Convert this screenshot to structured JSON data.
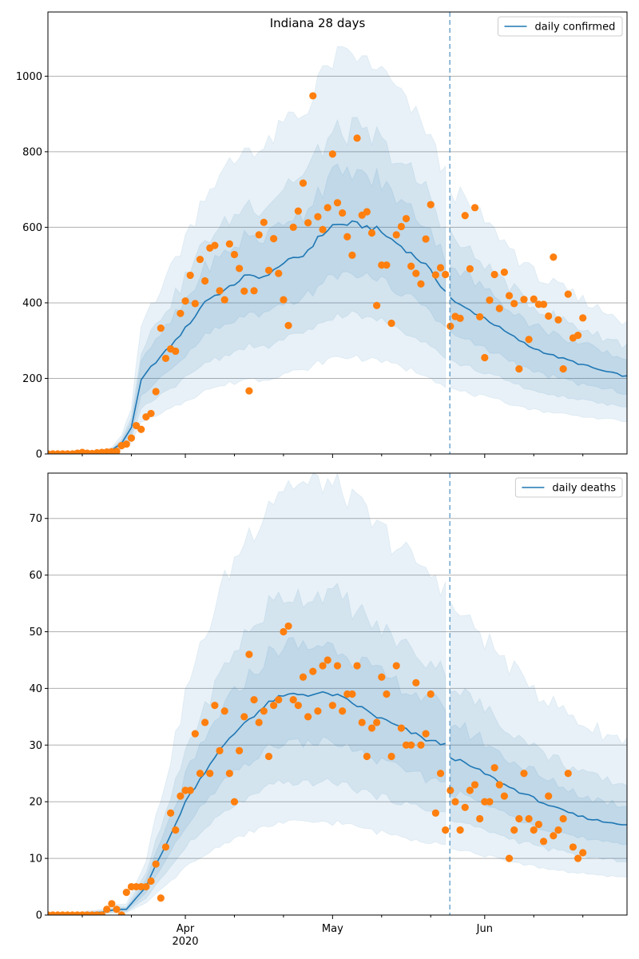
{
  "title": "Indiana 28 days",
  "x_ticks": {
    "major": [
      {
        "label": "Apr",
        "sublabel": "2020",
        "date": "2020-04-01"
      },
      {
        "label": "May",
        "sublabel": "",
        "date": "2020-05-01"
      },
      {
        "label": "Jun",
        "sublabel": "",
        "date": "2020-06-01"
      }
    ],
    "minor_dates": [
      "2020-03-11",
      "2020-03-21",
      "2020-04-11",
      "2020-04-21",
      "2020-05-11",
      "2020-05-21",
      "2020-06-11",
      "2020-06-21"
    ]
  },
  "colors": {
    "model_line": "#1f77b4",
    "observed_points": "#ff7f0e",
    "band": "#1f77b4",
    "grid": "#b0b0b0"
  },
  "chart_data": [
    {
      "type": "line",
      "name": "daily confirmed",
      "legend": {
        "label": "daily confirmed",
        "position": "upper right"
      },
      "xlim": [
        "2020-03-04",
        "2020-06-30"
      ],
      "ylim": [
        0,
        1170
      ],
      "yticks": [
        0,
        200,
        400,
        600,
        800,
        1000
      ],
      "grid": "y",
      "forecast_start": "2020-05-25",
      "model_knots": [
        [
          "2020-03-04",
          0
        ],
        [
          "2020-03-10",
          1
        ],
        [
          "2020-03-14",
          3
        ],
        [
          "2020-03-17",
          10
        ],
        [
          "2020-03-19",
          28
        ],
        [
          "2020-03-21",
          70
        ],
        [
          "2020-03-23",
          195
        ],
        [
          "2020-03-25",
          230
        ],
        [
          "2020-03-30",
          300
        ],
        [
          "2020-04-03",
          365
        ],
        [
          "2020-04-05",
          405
        ],
        [
          "2020-04-10",
          440
        ],
        [
          "2020-04-13",
          470
        ],
        [
          "2020-04-18",
          470
        ],
        [
          "2020-04-20",
          500
        ],
        [
          "2020-04-25",
          525
        ],
        [
          "2020-04-28",
          570
        ],
        [
          "2020-05-01",
          605
        ],
        [
          "2020-05-05",
          610
        ],
        [
          "2020-05-10",
          595
        ],
        [
          "2020-05-15",
          550
        ],
        [
          "2020-05-20",
          500
        ],
        [
          "2020-05-24",
          430
        ],
        [
          "2020-05-26",
          400
        ],
        [
          "2020-06-01",
          360
        ],
        [
          "2020-06-05",
          325
        ],
        [
          "2020-06-10",
          285
        ],
        [
          "2020-06-15",
          260
        ],
        [
          "2020-06-20",
          240
        ],
        [
          "2020-06-25",
          220
        ],
        [
          "2020-06-30",
          205
        ]
      ],
      "band_multipliers": {
        "inner": [
          0.78,
          1.22
        ],
        "middle": [
          0.6,
          1.4
        ],
        "outer": [
          0.42,
          1.72
        ],
        "outer_max": 1170
      },
      "observed": [
        [
          "2020-03-04",
          0
        ],
        [
          "2020-03-05",
          0
        ],
        [
          "2020-03-06",
          0
        ],
        [
          "2020-03-07",
          0
        ],
        [
          "2020-03-08",
          0
        ],
        [
          "2020-03-09",
          0
        ],
        [
          "2020-03-10",
          2
        ],
        [
          "2020-03-11",
          4
        ],
        [
          "2020-03-12",
          2
        ],
        [
          "2020-03-13",
          1
        ],
        [
          "2020-03-14",
          3
        ],
        [
          "2020-03-15",
          4
        ],
        [
          "2020-03-16",
          5
        ],
        [
          "2020-03-17",
          6
        ],
        [
          "2020-03-18",
          7
        ],
        [
          "2020-03-19",
          22
        ],
        [
          "2020-03-20",
          26
        ],
        [
          "2020-03-21",
          42
        ],
        [
          "2020-03-22",
          75
        ],
        [
          "2020-03-23",
          65
        ],
        [
          "2020-03-24",
          98
        ],
        [
          "2020-03-25",
          107
        ],
        [
          "2020-03-26",
          165
        ],
        [
          "2020-03-27",
          333
        ],
        [
          "2020-03-28",
          253
        ],
        [
          "2020-03-29",
          278
        ],
        [
          "2020-03-30",
          272
        ],
        [
          "2020-03-31",
          372
        ],
        [
          "2020-04-01",
          405
        ],
        [
          "2020-04-02",
          473
        ],
        [
          "2020-04-03",
          398
        ],
        [
          "2020-04-04",
          515
        ],
        [
          "2020-04-05",
          458
        ],
        [
          "2020-04-06",
          545
        ],
        [
          "2020-04-07",
          552
        ],
        [
          "2020-04-08",
          432
        ],
        [
          "2020-04-09",
          408
        ],
        [
          "2020-04-10",
          556
        ],
        [
          "2020-04-11",
          528
        ],
        [
          "2020-04-12",
          491
        ],
        [
          "2020-04-13",
          431
        ],
        [
          "2020-04-14",
          167
        ],
        [
          "2020-04-15",
          432
        ],
        [
          "2020-04-16",
          580
        ],
        [
          "2020-04-17",
          613
        ],
        [
          "2020-04-18",
          486
        ],
        [
          "2020-04-19",
          570
        ],
        [
          "2020-04-20",
          478
        ],
        [
          "2020-04-21",
          408
        ],
        [
          "2020-04-22",
          340
        ],
        [
          "2020-04-23",
          600
        ],
        [
          "2020-04-24",
          643
        ],
        [
          "2020-04-25",
          717
        ],
        [
          "2020-04-26",
          612
        ],
        [
          "2020-04-27",
          948
        ],
        [
          "2020-04-28",
          628
        ],
        [
          "2020-04-29",
          594
        ],
        [
          "2020-04-30",
          652
        ],
        [
          "2020-05-01",
          794
        ],
        [
          "2020-05-02",
          665
        ],
        [
          "2020-05-03",
          638
        ],
        [
          "2020-05-04",
          575
        ],
        [
          "2020-05-05",
          526
        ],
        [
          "2020-05-06",
          836
        ],
        [
          "2020-05-07",
          632
        ],
        [
          "2020-05-08",
          641
        ],
        [
          "2020-05-09",
          585
        ],
        [
          "2020-05-10",
          393
        ],
        [
          "2020-05-11",
          500
        ],
        [
          "2020-05-12",
          500
        ],
        [
          "2020-05-13",
          346
        ],
        [
          "2020-05-14",
          580
        ],
        [
          "2020-05-15",
          602
        ],
        [
          "2020-05-16",
          623
        ],
        [
          "2020-05-17",
          497
        ],
        [
          "2020-05-18",
          478
        ],
        [
          "2020-05-19",
          450
        ],
        [
          "2020-05-20",
          569
        ],
        [
          "2020-05-21",
          660
        ],
        [
          "2020-05-22",
          474
        ],
        [
          "2020-05-23",
          493
        ],
        [
          "2020-05-24",
          475
        ],
        [
          "2020-05-25",
          338
        ],
        [
          "2020-05-26",
          364
        ],
        [
          "2020-05-27",
          359
        ],
        [
          "2020-05-28",
          631
        ],
        [
          "2020-05-29",
          490
        ],
        [
          "2020-05-30",
          652
        ],
        [
          "2020-05-31",
          363
        ],
        [
          "2020-06-01",
          255
        ],
        [
          "2020-06-02",
          407
        ],
        [
          "2020-06-03",
          475
        ],
        [
          "2020-06-04",
          385
        ],
        [
          "2020-06-05",
          481
        ],
        [
          "2020-06-06",
          419
        ],
        [
          "2020-06-07",
          398
        ],
        [
          "2020-06-08",
          225
        ],
        [
          "2020-06-09",
          409
        ],
        [
          "2020-06-10",
          303
        ],
        [
          "2020-06-11",
          410
        ],
        [
          "2020-06-12",
          396
        ],
        [
          "2020-06-13",
          396
        ],
        [
          "2020-06-14",
          365
        ],
        [
          "2020-06-15",
          521
        ],
        [
          "2020-06-16",
          355
        ],
        [
          "2020-06-17",
          225
        ],
        [
          "2020-06-18",
          423
        ],
        [
          "2020-06-19",
          307
        ],
        [
          "2020-06-20",
          314
        ],
        [
          "2020-06-21",
          360
        ]
      ]
    },
    {
      "type": "line",
      "name": "daily deaths",
      "legend": {
        "label": "daily deaths",
        "position": "upper right"
      },
      "xlim": [
        "2020-03-04",
        "2020-06-30"
      ],
      "ylim": [
        0,
        78
      ],
      "yticks": [
        0,
        10,
        20,
        30,
        40,
        50,
        60,
        70
      ],
      "grid": "y",
      "forecast_start": "2020-05-25",
      "model_knots": [
        [
          "2020-03-04",
          0
        ],
        [
          "2020-03-15",
          0.5
        ],
        [
          "2020-03-18",
          1
        ],
        [
          "2020-03-20",
          1
        ],
        [
          "2020-03-24",
          5
        ],
        [
          "2020-03-26",
          9
        ],
        [
          "2020-03-29",
          14
        ],
        [
          "2020-04-01",
          20
        ],
        [
          "2020-04-04",
          24
        ],
        [
          "2020-04-07",
          28
        ],
        [
          "2020-04-10",
          31
        ],
        [
          "2020-04-13",
          34
        ],
        [
          "2020-04-16",
          36
        ],
        [
          "2020-04-19",
          38
        ],
        [
          "2020-04-23",
          39
        ],
        [
          "2020-05-01",
          39
        ],
        [
          "2020-05-06",
          37
        ],
        [
          "2020-05-10",
          35
        ],
        [
          "2020-05-15",
          33
        ],
        [
          "2020-05-20",
          31
        ],
        [
          "2020-05-24",
          30
        ],
        [
          "2020-05-25",
          28
        ],
        [
          "2020-06-01",
          25
        ],
        [
          "2020-06-05",
          23
        ],
        [
          "2020-06-10",
          21
        ],
        [
          "2020-06-15",
          19
        ],
        [
          "2020-06-20",
          17.5
        ],
        [
          "2020-06-25",
          16.5
        ],
        [
          "2020-06-30",
          16
        ]
      ],
      "band_multipliers": {
        "inner": [
          0.78,
          1.22
        ],
        "middle": [
          0.6,
          1.45
        ],
        "outer": [
          0.42,
          1.95
        ],
        "outer_max": 78
      },
      "observed": [
        [
          "2020-03-04",
          0
        ],
        [
          "2020-03-05",
          0
        ],
        [
          "2020-03-06",
          0
        ],
        [
          "2020-03-07",
          0
        ],
        [
          "2020-03-08",
          0
        ],
        [
          "2020-03-09",
          0
        ],
        [
          "2020-03-10",
          0
        ],
        [
          "2020-03-11",
          0
        ],
        [
          "2020-03-12",
          0
        ],
        [
          "2020-03-13",
          0
        ],
        [
          "2020-03-14",
          0
        ],
        [
          "2020-03-15",
          0
        ],
        [
          "2020-03-16",
          1
        ],
        [
          "2020-03-17",
          2
        ],
        [
          "2020-03-18",
          1
        ],
        [
          "2020-03-19",
          0
        ],
        [
          "2020-03-20",
          4
        ],
        [
          "2020-03-21",
          5
        ],
        [
          "2020-03-22",
          5
        ],
        [
          "2020-03-23",
          5
        ],
        [
          "2020-03-24",
          5
        ],
        [
          "2020-03-25",
          6
        ],
        [
          "2020-03-26",
          9
        ],
        [
          "2020-03-27",
          3
        ],
        [
          "2020-03-28",
          12
        ],
        [
          "2020-03-29",
          18
        ],
        [
          "2020-03-30",
          15
        ],
        [
          "2020-03-31",
          21
        ],
        [
          "2020-04-01",
          22
        ],
        [
          "2020-04-02",
          22
        ],
        [
          "2020-04-03",
          32
        ],
        [
          "2020-04-04",
          25
        ],
        [
          "2020-04-05",
          34
        ],
        [
          "2020-04-06",
          25
        ],
        [
          "2020-04-07",
          37
        ],
        [
          "2020-04-08",
          29
        ],
        [
          "2020-04-09",
          36
        ],
        [
          "2020-04-10",
          25
        ],
        [
          "2020-04-11",
          20
        ],
        [
          "2020-04-12",
          29
        ],
        [
          "2020-04-13",
          35
        ],
        [
          "2020-04-14",
          46
        ],
        [
          "2020-04-15",
          38
        ],
        [
          "2020-04-16",
          34
        ],
        [
          "2020-04-17",
          36
        ],
        [
          "2020-04-18",
          28
        ],
        [
          "2020-04-19",
          37
        ],
        [
          "2020-04-20",
          38
        ],
        [
          "2020-04-21",
          50
        ],
        [
          "2020-04-22",
          51
        ],
        [
          "2020-04-23",
          38
        ],
        [
          "2020-04-24",
          37
        ],
        [
          "2020-04-25",
          42
        ],
        [
          "2020-04-26",
          35
        ],
        [
          "2020-04-27",
          43
        ],
        [
          "2020-04-28",
          36
        ],
        [
          "2020-04-29",
          44
        ],
        [
          "2020-04-30",
          45
        ],
        [
          "2020-05-01",
          37
        ],
        [
          "2020-05-02",
          44
        ],
        [
          "2020-05-03",
          36
        ],
        [
          "2020-05-04",
          39
        ],
        [
          "2020-05-05",
          39
        ],
        [
          "2020-05-06",
          44
        ],
        [
          "2020-05-07",
          34
        ],
        [
          "2020-05-08",
          28
        ],
        [
          "2020-05-09",
          33
        ],
        [
          "2020-05-10",
          34
        ],
        [
          "2020-05-11",
          42
        ],
        [
          "2020-05-12",
          39
        ],
        [
          "2020-05-13",
          28
        ],
        [
          "2020-05-14",
          44
        ],
        [
          "2020-05-15",
          33
        ],
        [
          "2020-05-16",
          30
        ],
        [
          "2020-05-17",
          30
        ],
        [
          "2020-05-18",
          41
        ],
        [
          "2020-05-19",
          30
        ],
        [
          "2020-05-20",
          32
        ],
        [
          "2020-05-21",
          39
        ],
        [
          "2020-05-22",
          18
        ],
        [
          "2020-05-23",
          25
        ],
        [
          "2020-05-24",
          15
        ],
        [
          "2020-05-25",
          22
        ],
        [
          "2020-05-26",
          20
        ],
        [
          "2020-05-27",
          15
        ],
        [
          "2020-05-28",
          19
        ],
        [
          "2020-05-29",
          22
        ],
        [
          "2020-05-30",
          23
        ],
        [
          "2020-05-31",
          17
        ],
        [
          "2020-06-01",
          20
        ],
        [
          "2020-06-02",
          20
        ],
        [
          "2020-06-03",
          26
        ],
        [
          "2020-06-04",
          23
        ],
        [
          "2020-06-05",
          21
        ],
        [
          "2020-06-06",
          10
        ],
        [
          "2020-06-07",
          15
        ],
        [
          "2020-06-08",
          17
        ],
        [
          "2020-06-09",
          25
        ],
        [
          "2020-06-10",
          17
        ],
        [
          "2020-06-11",
          15
        ],
        [
          "2020-06-12",
          16
        ],
        [
          "2020-06-13",
          13
        ],
        [
          "2020-06-14",
          21
        ],
        [
          "2020-06-15",
          14
        ],
        [
          "2020-06-16",
          15
        ],
        [
          "2020-06-17",
          17
        ],
        [
          "2020-06-18",
          25
        ],
        [
          "2020-06-19",
          12
        ],
        [
          "2020-06-20",
          10
        ],
        [
          "2020-06-21",
          11
        ]
      ]
    }
  ]
}
